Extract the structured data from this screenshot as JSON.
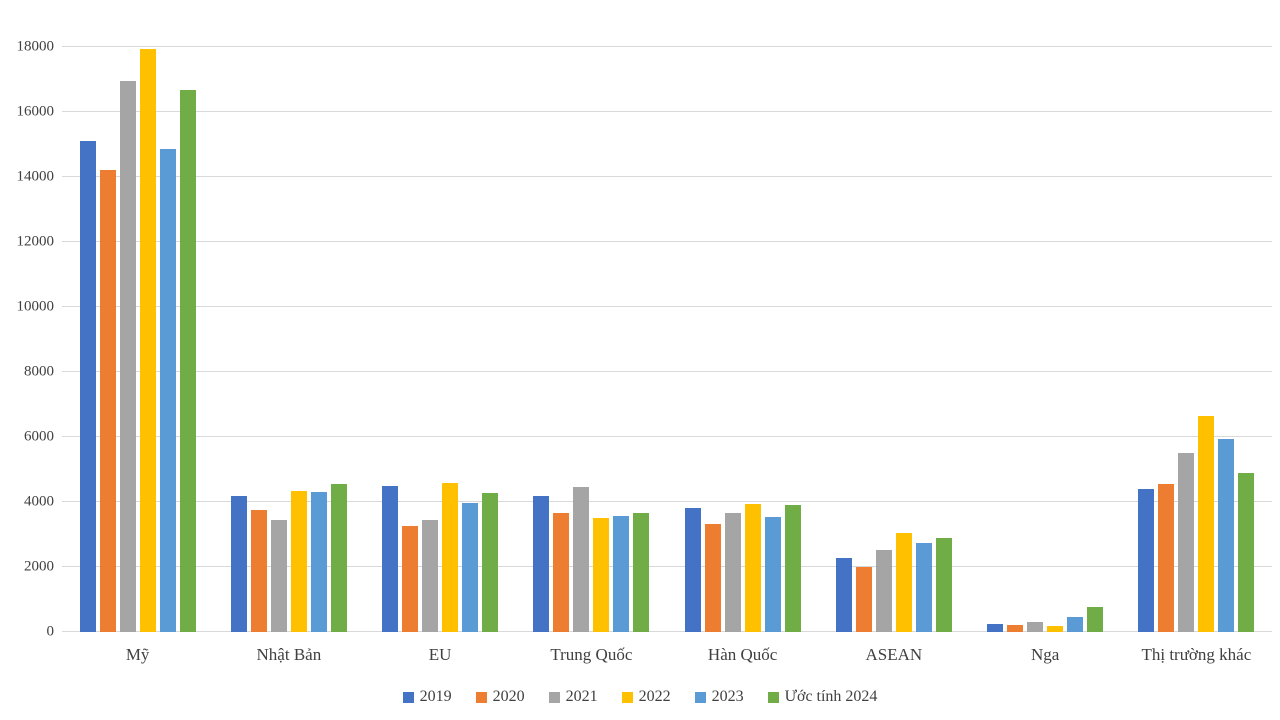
{
  "chart_data": {
    "type": "bar",
    "title": "",
    "xlabel": "",
    "ylabel": "",
    "categories": [
      "Mỹ",
      "Nhật Bản",
      "EU",
      "Trung Quốc",
      "Hàn Quốc",
      "ASEAN",
      "Nga",
      "Thị trường khác"
    ],
    "series": [
      {
        "name": "2019",
        "color": "#4472C4",
        "values": [
          15100,
          4180,
          4480,
          4200,
          3820,
          2280,
          250,
          4400
        ]
      },
      {
        "name": "2020",
        "color": "#ED7D31",
        "values": [
          14220,
          3750,
          3250,
          3650,
          3330,
          2000,
          220,
          4550
        ]
      },
      {
        "name": "2021",
        "color": "#A5A5A5",
        "values": [
          16950,
          3450,
          3450,
          4450,
          3650,
          2530,
          300,
          5500
        ]
      },
      {
        "name": "2022",
        "color": "#FFC000",
        "values": [
          17950,
          4350,
          4600,
          3500,
          3950,
          3050,
          180,
          6650
        ]
      },
      {
        "name": "2023",
        "color": "#5B9BD5",
        "values": [
          14870,
          4300,
          3980,
          3560,
          3530,
          2730,
          450,
          5950
        ]
      },
      {
        "name": "Ước tính 2024",
        "color": "#70AD47",
        "values": [
          16670,
          4550,
          4280,
          3650,
          3900,
          2900,
          780,
          4900
        ]
      }
    ],
    "ylim": [
      0,
      18000
    ],
    "ytick_step": 2000,
    "yticks": [
      0,
      2000,
      4000,
      6000,
      8000,
      10000,
      12000,
      14000,
      16000,
      18000
    ],
    "grid": true,
    "legend_position": "bottom"
  },
  "colors": {
    "background": "#FFFFFF",
    "gridline": "#D9D9D9",
    "axis_text": "#404040"
  }
}
